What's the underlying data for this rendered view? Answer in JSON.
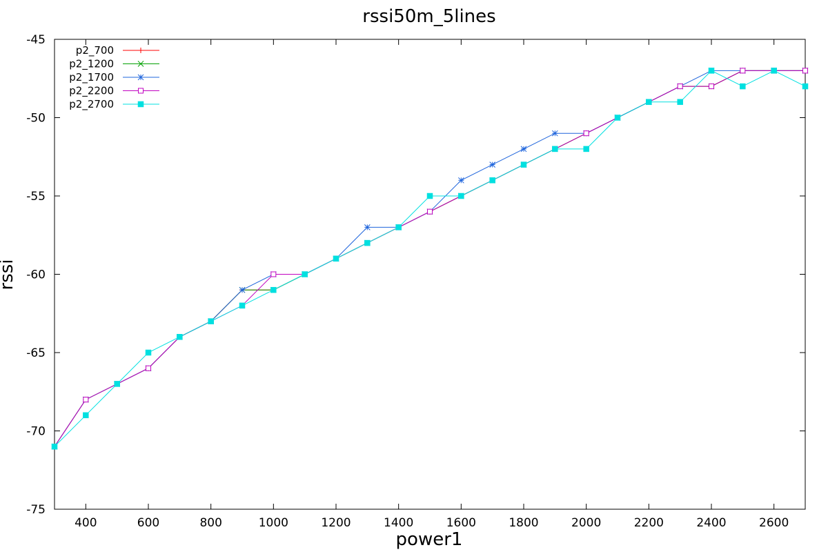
{
  "chart_data": {
    "type": "line",
    "title": "rssi50m_5lines",
    "xlabel": "power1",
    "ylabel": "rssi",
    "xlim": [
      300,
      2700
    ],
    "ylim": [
      -75,
      -45
    ],
    "x_ticks": [
      400,
      600,
      800,
      1000,
      1200,
      1400,
      1600,
      1800,
      2000,
      2200,
      2400,
      2600
    ],
    "y_ticks": [
      -75,
      -70,
      -65,
      -60,
      -55,
      -50,
      -45
    ],
    "grid": false,
    "legend_position": "top-left",
    "x": [
      300,
      400,
      500,
      600,
      700,
      800,
      900,
      1000,
      1100,
      1200,
      1300,
      1400,
      1500,
      1600,
      1700,
      1800,
      1900,
      2000,
      2100,
      2200,
      2300,
      2400,
      2500,
      2600,
      2700
    ],
    "series": [
      {
        "name": "p2_700",
        "color": "#ff0000",
        "marker": "plus",
        "values": [
          -71,
          -68,
          -67,
          -66,
          -64,
          -63,
          -61,
          -61,
          -60,
          -59,
          -58,
          -57,
          -56,
          -55,
          -54,
          -53,
          -52,
          -51,
          -50,
          -49,
          -48,
          -48,
          -47,
          -47,
          -47
        ]
      },
      {
        "name": "p2_1200",
        "color": "#00a000",
        "marker": "cross",
        "values": [
          -71,
          -68,
          -67,
          -66,
          -64,
          -63,
          -61,
          -61,
          -60,
          -59,
          -58,
          -57,
          -56,
          -55,
          -54,
          -53,
          -52,
          -51,
          -50,
          -49,
          -48,
          -48,
          -47,
          -47,
          -47
        ]
      },
      {
        "name": "p2_1700",
        "color": "#1e64dc",
        "marker": "star",
        "values": [
          -71,
          -68,
          -67,
          -66,
          -64,
          -63,
          -61,
          -60,
          -60,
          -59,
          -57,
          -57,
          -56,
          -54,
          -53,
          -52,
          -51,
          -51,
          -50,
          -49,
          -48,
          -47,
          -47,
          -47,
          -47
        ]
      },
      {
        "name": "p2_2200",
        "color": "#c000c0",
        "marker": "square-open",
        "values": [
          -71,
          -68,
          -67,
          -66,
          -64,
          -63,
          -62,
          -60,
          -60,
          -59,
          -58,
          -57,
          -56,
          -55,
          -54,
          -53,
          -52,
          -51,
          -50,
          -49,
          -48,
          -48,
          -47,
          -47,
          -47
        ]
      },
      {
        "name": "p2_2700",
        "color": "#00e0e0",
        "marker": "square-filled",
        "values": [
          -71,
          -69,
          -67,
          -65,
          -64,
          -63,
          -62,
          -61,
          -60,
          -59,
          -58,
          -57,
          -55,
          -55,
          -54,
          -53,
          -52,
          -52,
          -50,
          -49,
          -49,
          -47,
          -48,
          -47,
          -48
        ]
      }
    ]
  }
}
